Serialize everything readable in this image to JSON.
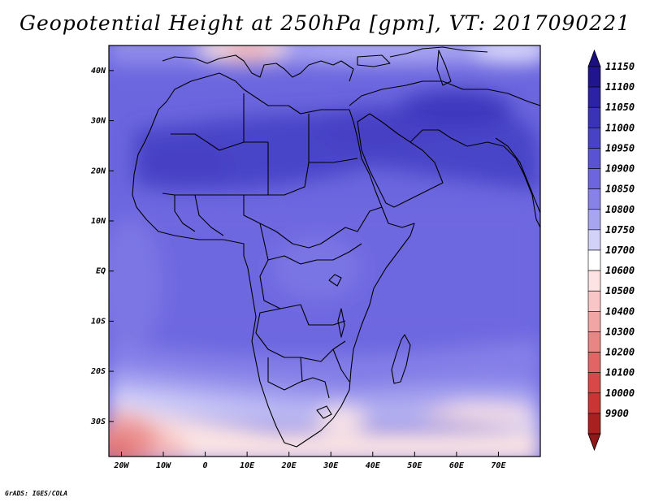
{
  "title": "Geopotential Height at 250hPa [gpm], VT: 2017090221",
  "credit": "GrADS: IGES/COLA",
  "map": {
    "projection": "lat-lon",
    "lon_range": [
      -23,
      80
    ],
    "lat_range": [
      -37,
      45
    ],
    "lon_ticks": [
      {
        "value": -20,
        "label": "20W"
      },
      {
        "value": -10,
        "label": "10W"
      },
      {
        "value": 0,
        "label": "0"
      },
      {
        "value": 10,
        "label": "10E"
      },
      {
        "value": 20,
        "label": "20E"
      },
      {
        "value": 30,
        "label": "30E"
      },
      {
        "value": 40,
        "label": "40E"
      },
      {
        "value": 50,
        "label": "50E"
      },
      {
        "value": 60,
        "label": "60E"
      },
      {
        "value": 70,
        "label": "70E"
      }
    ],
    "lat_ticks": [
      {
        "value": 40,
        "label": "40N"
      },
      {
        "value": 30,
        "label": "30N"
      },
      {
        "value": 20,
        "label": "20N"
      },
      {
        "value": 10,
        "label": "10N"
      },
      {
        "value": 0,
        "label": "EQ"
      },
      {
        "value": -10,
        "label": "10S"
      },
      {
        "value": -20,
        "label": "20S"
      },
      {
        "value": -30,
        "label": "30S"
      }
    ],
    "field_summary": [
      {
        "region": "northern Mediterranean / Italy",
        "approx_value": 10750
      },
      {
        "region": "Sahara and Arabian Peninsula belt",
        "approx_value": 11050
      },
      {
        "region": "tropics / equatorial Africa",
        "approx_value": 10950
      },
      {
        "region": "southern Africa",
        "approx_value": 10850
      },
      {
        "region": "South Atlantic near 35S",
        "approx_value": 10300
      },
      {
        "region": "southern Indian Ocean near 30S",
        "approx_value": 10700
      }
    ]
  },
  "colorbar": {
    "levels": [
      {
        "label": "11150",
        "color": "#21148f"
      },
      {
        "label": "11100",
        "color": "#2c22a6"
      },
      {
        "label": "11050",
        "color": "#3a33b8"
      },
      {
        "label": "11000",
        "color": "#4842c6"
      },
      {
        "label": "10950",
        "color": "#5a52d5"
      },
      {
        "label": "10900",
        "color": "#6c65df"
      },
      {
        "label": "10850",
        "color": "#8782e8"
      },
      {
        "label": "10800",
        "color": "#a7a4f0"
      },
      {
        "label": "10750",
        "color": "#d2d1f8"
      },
      {
        "label": "10700",
        "color": "#ffffff"
      },
      {
        "label": "10600",
        "color": "#fde3e3"
      },
      {
        "label": "10500",
        "color": "#f8c6c6"
      },
      {
        "label": "10400",
        "color": "#f2a5a5"
      },
      {
        "label": "10300",
        "color": "#ea8585"
      },
      {
        "label": "10200",
        "color": "#e26464"
      },
      {
        "label": "10100",
        "color": "#d84848"
      },
      {
        "label": "10000",
        "color": "#c93434"
      },
      {
        "label": "9900",
        "color": "#a82020"
      }
    ],
    "top_arrow_color": "#1a0f80",
    "bottom_arrow_color": "#901818"
  }
}
